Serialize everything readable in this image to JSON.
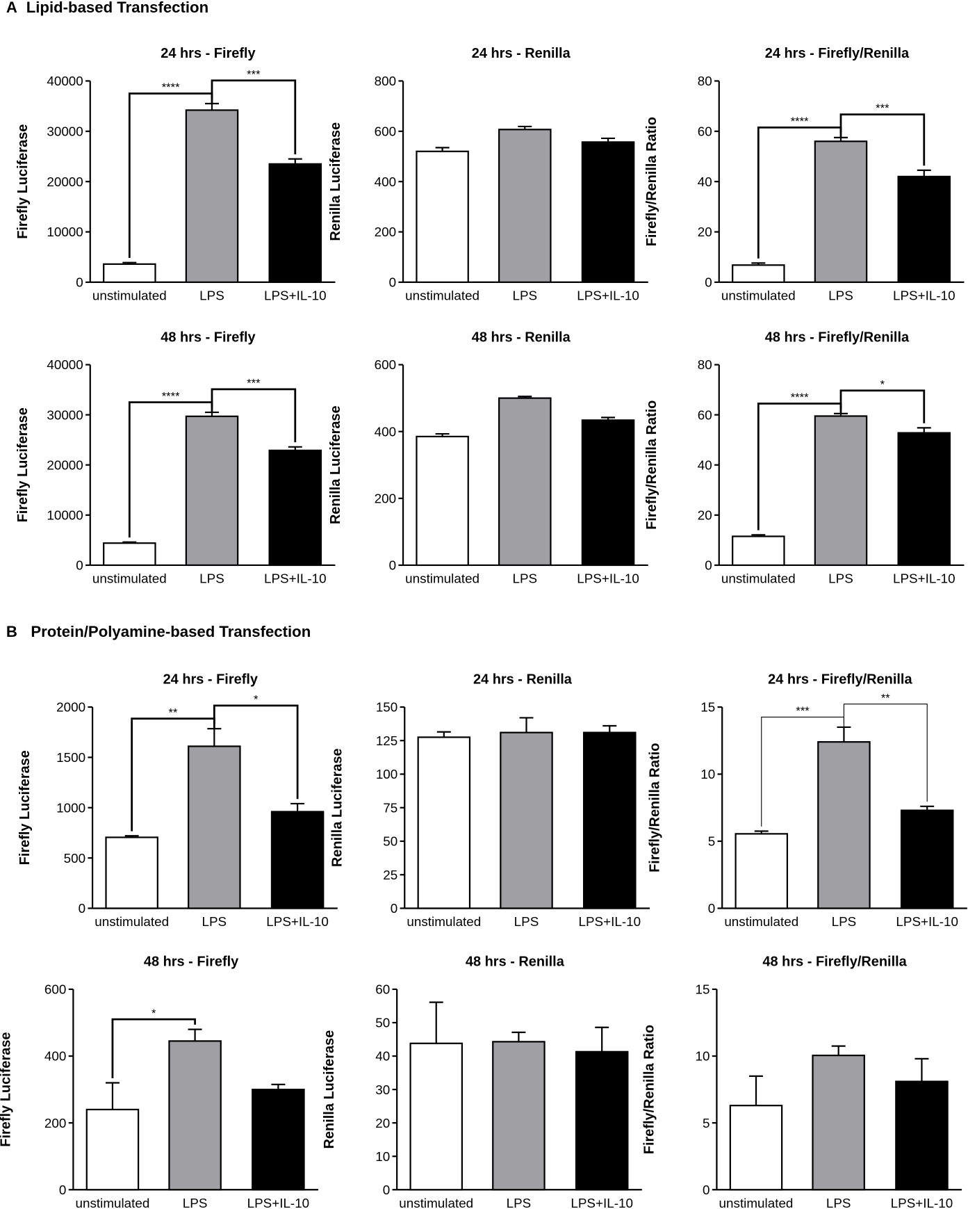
{
  "sections": [
    {
      "letter": "A",
      "title": "Lipid-based Transfection"
    },
    {
      "letter": "B",
      "title": "Protein/Polyamine-based Transfection"
    }
  ],
  "colors": {
    "unstimulated": "#ffffff",
    "LPS": "#a0a0a4",
    "LPS+IL-10": "#000000"
  },
  "chart_data": [
    {
      "type": "bar",
      "title": "24 hrs - Firefly",
      "ylabel": "Firefly Luciferase",
      "categories": [
        "unstimulated",
        "LPS",
        "LPS+IL-10"
      ],
      "values": [
        3600,
        34200,
        23500
      ],
      "errors": [
        300,
        1300,
        1000
      ],
      "ylim": [
        0,
        40000
      ],
      "yticks": [
        0,
        10000,
        20000,
        30000,
        40000
      ],
      "significance": [
        {
          "from": 0,
          "to": 1,
          "label": "****"
        },
        {
          "from": 1,
          "to": 2,
          "label": "***"
        }
      ]
    },
    {
      "type": "bar",
      "title": "24 hrs - Renilla",
      "ylabel": "Renilla Luciferase",
      "categories": [
        "unstimulated",
        "LPS",
        "LPS+IL-10"
      ],
      "values": [
        520,
        607,
        557
      ],
      "errors": [
        15,
        12,
        15
      ],
      "ylim": [
        0,
        800
      ],
      "yticks": [
        0,
        200,
        400,
        600,
        800
      ],
      "significance": []
    },
    {
      "type": "bar",
      "title": "24 hrs - Firefly/Renilla",
      "ylabel": "Firefly/Renilla Ratio",
      "categories": [
        "unstimulated",
        "LPS",
        "LPS+IL-10"
      ],
      "values": [
        6.8,
        56,
        42
      ],
      "errors": [
        0.8,
        1.5,
        2.5
      ],
      "ylim": [
        0,
        80
      ],
      "yticks": [
        0,
        20,
        40,
        60,
        80
      ],
      "significance": [
        {
          "from": 0,
          "to": 1,
          "label": "****"
        },
        {
          "from": 1,
          "to": 2,
          "label": "***"
        }
      ]
    },
    {
      "type": "bar",
      "title": "48 hrs - Firefly",
      "ylabel": "Firefly Luciferase",
      "categories": [
        "unstimulated",
        "LPS",
        "LPS+IL-10"
      ],
      "values": [
        4400,
        29700,
        22900
      ],
      "errors": [
        200,
        800,
        700
      ],
      "ylim": [
        0,
        40000
      ],
      "yticks": [
        0,
        10000,
        20000,
        30000,
        40000
      ],
      "significance": [
        {
          "from": 0,
          "to": 1,
          "label": "****"
        },
        {
          "from": 1,
          "to": 2,
          "label": "***"
        }
      ]
    },
    {
      "type": "bar",
      "title": "48 hrs - Renilla",
      "ylabel": "Renilla Luciferase",
      "categories": [
        "unstimulated",
        "LPS",
        "LPS+IL-10"
      ],
      "values": [
        385,
        500,
        434
      ],
      "errors": [
        8,
        5,
        8
      ],
      "ylim": [
        0,
        600
      ],
      "yticks": [
        0,
        200,
        400,
        600
      ],
      "significance": []
    },
    {
      "type": "bar",
      "title": "48 hrs - Firefly/Renilla",
      "ylabel": "Firefly/Renilla Ratio",
      "categories": [
        "unstimulated",
        "LPS",
        "LPS+IL-10"
      ],
      "values": [
        11.5,
        59.5,
        52.8
      ],
      "errors": [
        0.6,
        1,
        2
      ],
      "ylim": [
        0,
        80
      ],
      "yticks": [
        0,
        20,
        40,
        60,
        80
      ],
      "significance": [
        {
          "from": 0,
          "to": 1,
          "label": "****"
        },
        {
          "from": 1,
          "to": 2,
          "label": "*"
        }
      ]
    },
    {
      "type": "bar",
      "title": "24 hrs - Firefly",
      "ylabel": "Firefly Luciferase",
      "categories": [
        "unstimulated",
        "LPS",
        "LPS+IL-10"
      ],
      "values": [
        705,
        1610,
        960
      ],
      "errors": [
        15,
        175,
        80
      ],
      "ylim": [
        0,
        2000
      ],
      "yticks": [
        0,
        500,
        1000,
        1500,
        2000
      ],
      "significance": [
        {
          "from": 0,
          "to": 1,
          "label": "**"
        },
        {
          "from": 1,
          "to": 2,
          "label": "*"
        }
      ]
    },
    {
      "type": "bar",
      "title": "24 hrs  - Renilla",
      "ylabel": "Renilla Luciferase",
      "categories": [
        "unstimulated",
        "LPS",
        "LPS+IL-10"
      ],
      "values": [
        127.5,
        131,
        131
      ],
      "errors": [
        4,
        11,
        5
      ],
      "ylim": [
        0,
        150
      ],
      "yticks": [
        0,
        25,
        50,
        75,
        100,
        125,
        150
      ],
      "significance": []
    },
    {
      "type": "bar",
      "title": "24 hrs - Firefly/Renilla",
      "ylabel": "Firefly/Renilla Ratio",
      "categories": [
        "unstimulated",
        "LPS",
        "LPS+IL-10"
      ],
      "values": [
        5.55,
        12.4,
        7.3
      ],
      "errors": [
        0.2,
        1.1,
        0.3
      ],
      "ylim": [
        0,
        15
      ],
      "yticks": [
        0,
        5,
        10,
        15
      ],
      "significance": [
        {
          "from": 0,
          "to": 1,
          "label": "***"
        },
        {
          "from": 1,
          "to": 2,
          "label": "**"
        }
      ]
    },
    {
      "type": "bar",
      "title": "48 hrs - Firefly",
      "ylabel": "Firefly Luciferase",
      "categories": [
        "unstimulated",
        "LPS",
        "LPS+IL-10"
      ],
      "values": [
        240,
        445,
        300
      ],
      "errors": [
        80,
        35,
        15
      ],
      "ylim": [
        0,
        600
      ],
      "yticks": [
        0,
        200,
        400,
        600
      ],
      "significance": [
        {
          "from": 0,
          "to": 1,
          "label": "*"
        }
      ]
    },
    {
      "type": "bar",
      "title": "48 hrs - Renilla",
      "ylabel": "Renilla Luciferase",
      "categories": [
        "unstimulated",
        "LPS",
        "LPS+IL-10"
      ],
      "values": [
        43.8,
        44.3,
        41.3
      ],
      "errors": [
        12.3,
        2.8,
        7.3
      ],
      "ylim": [
        0,
        60
      ],
      "yticks": [
        0,
        10,
        20,
        30,
        40,
        50,
        60
      ],
      "significance": []
    },
    {
      "type": "bar",
      "title": "48 hrs - Firefly/Renilla",
      "ylabel": "Firefly/Renilla Ratio",
      "categories": [
        "unstimulated",
        "LPS",
        "LPS+IL-10"
      ],
      "values": [
        6.3,
        10.05,
        8.1
      ],
      "errors": [
        2.2,
        0.7,
        1.7
      ],
      "ylim": [
        0,
        15
      ],
      "yticks": [
        0,
        5,
        10,
        15
      ],
      "significance": []
    }
  ]
}
